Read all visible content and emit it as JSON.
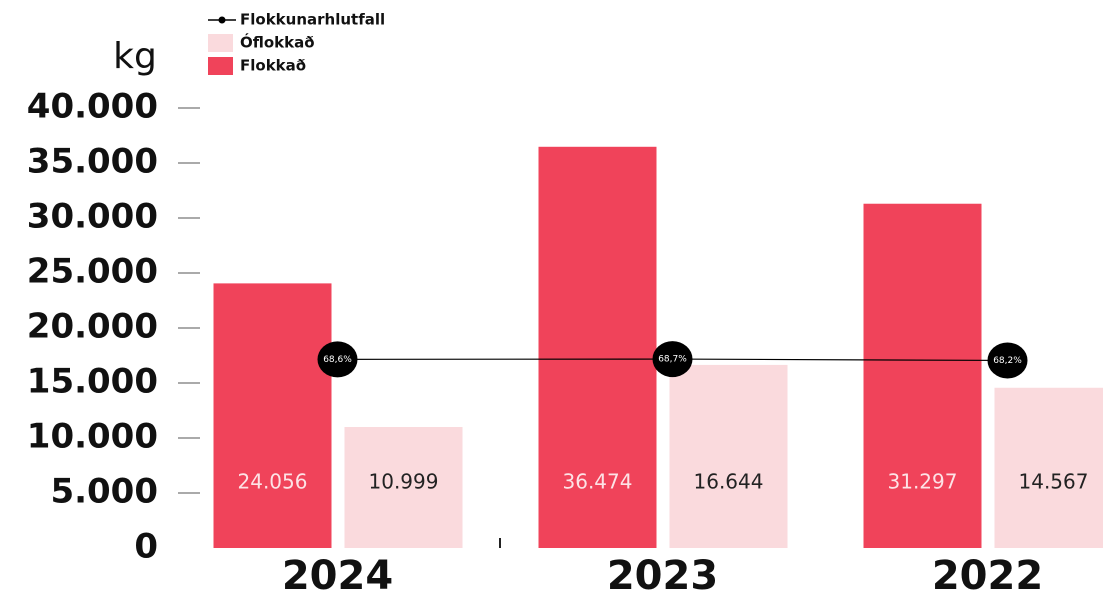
{
  "chart_data": {
    "type": "bar",
    "y_label": "kg",
    "categories": [
      "2024",
      "2023",
      "2022"
    ],
    "series": [
      {
        "name": "Flokkað",
        "color": "#f0435a",
        "values": [
          24056,
          36474,
          31297
        ],
        "value_labels": [
          "24.056",
          "36.474",
          "31.297"
        ]
      },
      {
        "name": "Óflokkað",
        "color": "#fadadd",
        "values": [
          10999,
          16644,
          14567
        ],
        "value_labels": [
          "10.999",
          "16.644",
          "14.567"
        ]
      },
      {
        "name": "Flokkunarhlutfall",
        "type": "line",
        "axis": "y2",
        "color": "#000000",
        "values": [
          68.6,
          68.7,
          68.2
        ],
        "value_labels": [
          "68,6%",
          "68,7%",
          "68,2%"
        ]
      }
    ],
    "ylim": [
      0,
      40000
    ],
    "yticks": [
      0,
      {
        "value": 5000,
        "label": "5.000"
      },
      {
        "value": 10000,
        "label": "10.000"
      },
      {
        "value": 15000,
        "label": "15.000"
      },
      {
        "value": 20000,
        "label": "20.000"
      },
      {
        "value": 25000,
        "label": "25.000"
      },
      {
        "value": 30000,
        "label": "30.000"
      },
      {
        "value": 35000,
        "label": "35.000"
      },
      {
        "value": 40000,
        "label": "40.000"
      }
    ],
    "y2lim": [
      0,
      160
    ],
    "legend": "top-left"
  }
}
